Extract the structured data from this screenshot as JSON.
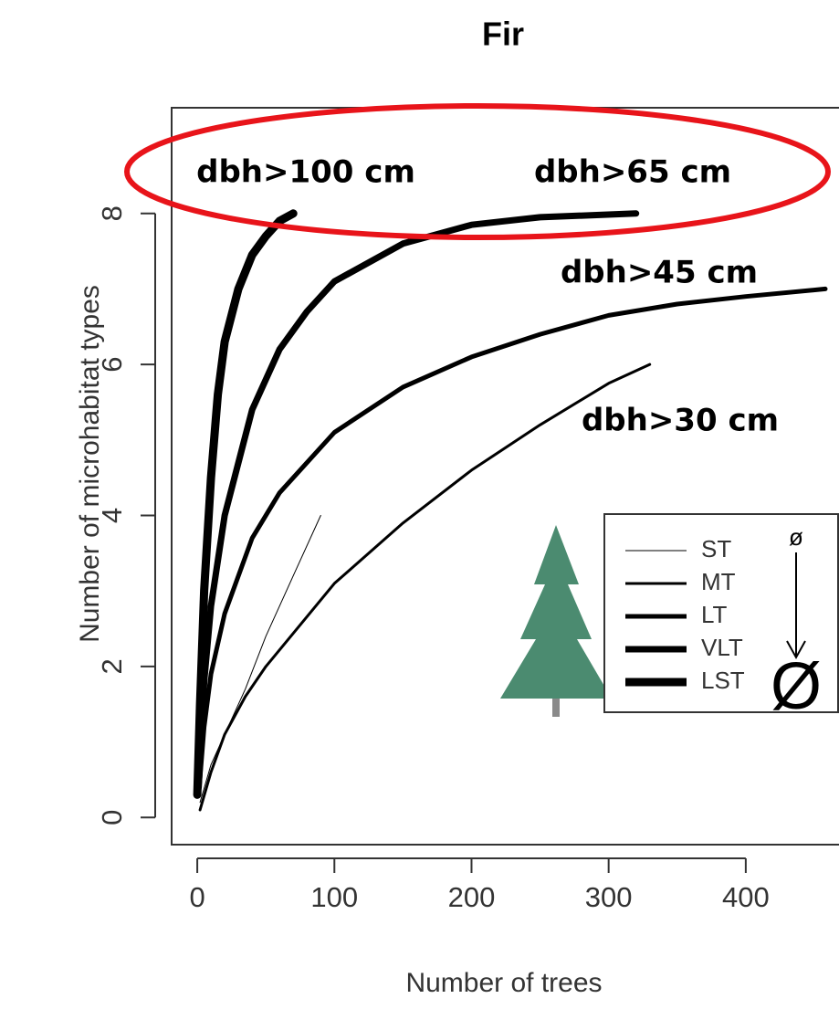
{
  "chart_data": {
    "type": "line",
    "title": "Fir",
    "x_label": "Number of trees",
    "y_label": "Number of microhabitat types",
    "xlim": [
      -18.7,
      468
    ],
    "ylim": [
      -0.36,
      9.4
    ],
    "xticks": [
      0,
      100,
      200,
      300,
      400
    ],
    "yticks": [
      0,
      2,
      4,
      6,
      8
    ],
    "grid": false,
    "legend_position": "right",
    "series": [
      {
        "name": "ST",
        "color": "#000000",
        "width": 1,
        "x": [
          2,
          10,
          20,
          35,
          50,
          70,
          90
        ],
        "values": [
          0.2,
          0.7,
          1.1,
          1.7,
          2.4,
          3.2,
          4.0
        ]
      },
      {
        "name": "MT",
        "color": "#000000",
        "width": 3,
        "x": [
          2,
          10,
          20,
          35,
          50,
          100,
          150,
          200,
          250,
          300,
          330
        ],
        "values": [
          0.1,
          0.6,
          1.1,
          1.6,
          2.0,
          3.1,
          3.9,
          4.6,
          5.2,
          5.75,
          6.0
        ]
      },
      {
        "name": "LT",
        "color": "#000000",
        "width": 5,
        "x": [
          1,
          5,
          10,
          20,
          40,
          60,
          100,
          150,
          200,
          250,
          300,
          350,
          400,
          458
        ],
        "values": [
          0.3,
          1.2,
          1.9,
          2.7,
          3.7,
          4.3,
          5.1,
          5.7,
          6.1,
          6.4,
          6.65,
          6.8,
          6.9,
          7.0
        ]
      },
      {
        "name": "VLT",
        "color": "#000000",
        "width": 7,
        "x": [
          1,
          5,
          10,
          20,
          40,
          60,
          80,
          100,
          150,
          200,
          250,
          320
        ],
        "values": [
          0.4,
          1.8,
          2.8,
          4.0,
          5.4,
          6.2,
          6.7,
          7.1,
          7.6,
          7.85,
          7.95,
          8.0
        ]
      },
      {
        "name": "LST",
        "color": "#000000",
        "width": 9,
        "x": [
          0,
          2,
          5,
          10,
          15,
          20,
          30,
          40,
          50,
          60,
          70
        ],
        "values": [
          0.3,
          1.5,
          3.0,
          4.5,
          5.6,
          6.3,
          7.0,
          7.45,
          7.7,
          7.9,
          8.0
        ]
      }
    ],
    "annotations": [
      "dbh>100 cm",
      "dbh>65 cm",
      "dbh>45 cm",
      "dbh>30 cm"
    ],
    "size_arrow": {
      "small": "ø",
      "large": "Ø"
    },
    "highlight_color": "#e8141a"
  }
}
